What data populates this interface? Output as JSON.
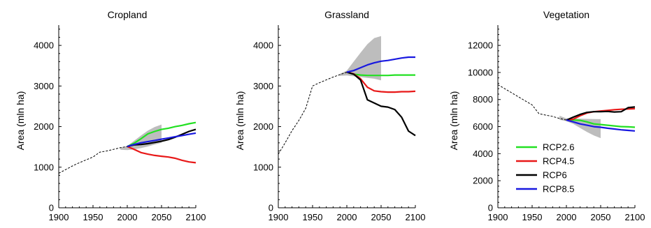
{
  "figure": {
    "x_ticks": [
      "1900",
      "1950",
      "2000",
      "2050",
      "2100"
    ],
    "ylabel": "Area (mln ha)"
  },
  "legend": [
    {
      "name": "RCP2.6",
      "color": "#22e022"
    },
    {
      "name": "RCP4.5",
      "color": "#e81818"
    },
    {
      "name": "RCP6",
      "color": "#000000"
    },
    {
      "name": "RCP8.5",
      "color": "#1818e0"
    }
  ],
  "chart_data": [
    {
      "type": "line",
      "title": "Cropland",
      "xlabel": "",
      "ylabel": "Area (mln ha)",
      "xlim": [
        1900,
        2100
      ],
      "ylim": [
        0,
        4500
      ],
      "yticks": [
        0,
        1000,
        2000,
        3000,
        4000
      ],
      "y_tick_labels": [
        "0",
        "1000",
        "2000",
        "3000",
        "4000"
      ],
      "historical": {
        "style": "dashed",
        "x": [
          1900,
          1910,
          1920,
          1930,
          1940,
          1950,
          1960,
          1970,
          1980,
          1990,
          2000
        ],
        "y": [
          850,
          940,
          1030,
          1110,
          1180,
          1250,
          1370,
          1400,
          1440,
          1480,
          1510
        ]
      },
      "band": {
        "x": [
          1990,
          2000,
          2010,
          2020,
          2030,
          2040,
          2050
        ],
        "low": [
          1430,
          1420,
          1440,
          1470,
          1510,
          1560,
          1600
        ],
        "high": [
          1480,
          1520,
          1650,
          1780,
          1900,
          1990,
          2050
        ]
      },
      "series": [
        {
          "name": "RCP2.6",
          "color": "#22e022",
          "x": [
            2000,
            2010,
            2020,
            2030,
            2040,
            2050,
            2060,
            2070,
            2080,
            2090,
            2100
          ],
          "y": [
            1510,
            1590,
            1700,
            1820,
            1880,
            1930,
            1960,
            2000,
            2030,
            2070,
            2100
          ]
        },
        {
          "name": "RCP4.5",
          "color": "#e81818",
          "x": [
            2000,
            2010,
            2020,
            2030,
            2040,
            2050,
            2060,
            2070,
            2080,
            2090,
            2100
          ],
          "y": [
            1510,
            1440,
            1360,
            1320,
            1290,
            1270,
            1250,
            1220,
            1170,
            1130,
            1110
          ]
        },
        {
          "name": "RCP6",
          "color": "#000000",
          "x": [
            2000,
            2010,
            2020,
            2030,
            2040,
            2050,
            2060,
            2070,
            2080,
            2090,
            2100
          ],
          "y": [
            1510,
            1550,
            1560,
            1580,
            1610,
            1640,
            1680,
            1740,
            1810,
            1880,
            1930
          ]
        },
        {
          "name": "RCP8.5",
          "color": "#1818e0",
          "x": [
            2000,
            2010,
            2020,
            2030,
            2040,
            2050,
            2060,
            2070,
            2080,
            2090,
            2100
          ],
          "y": [
            1510,
            1560,
            1600,
            1630,
            1660,
            1690,
            1720,
            1750,
            1780,
            1810,
            1840
          ]
        }
      ]
    },
    {
      "type": "line",
      "title": "Grassland",
      "xlabel": "",
      "ylabel": "Area (mln ha)",
      "xlim": [
        1900,
        2100
      ],
      "ylim": [
        0,
        4500
      ],
      "yticks": [
        0,
        1000,
        2000,
        3000,
        4000
      ],
      "y_tick_labels": [
        "0",
        "1000",
        "2000",
        "3000",
        "4000"
      ],
      "historical": {
        "style": "dashed",
        "x": [
          1900,
          1910,
          1920,
          1930,
          1940,
          1950,
          1960,
          1970,
          1980,
          1990,
          2000
        ],
        "y": [
          1320,
          1600,
          1900,
          2150,
          2450,
          3000,
          3080,
          3150,
          3220,
          3280,
          3340
        ]
      },
      "band": {
        "x": [
          1990,
          2000,
          2010,
          2020,
          2030,
          2040,
          2050
        ],
        "low": [
          3250,
          3260,
          3240,
          3220,
          3200,
          3180,
          3140
        ],
        "high": [
          3300,
          3380,
          3600,
          3820,
          4030,
          4180,
          4230
        ]
      },
      "series": [
        {
          "name": "RCP2.6",
          "color": "#22e022",
          "x": [
            2000,
            2010,
            2020,
            2030,
            2040,
            2050,
            2060,
            2070,
            2080,
            2090,
            2100
          ],
          "y": [
            3340,
            3290,
            3270,
            3260,
            3260,
            3260,
            3260,
            3270,
            3270,
            3270,
            3270
          ]
        },
        {
          "name": "RCP4.5",
          "color": "#e81818",
          "x": [
            2000,
            2010,
            2020,
            2030,
            2040,
            2050,
            2060,
            2070,
            2080,
            2090,
            2100
          ],
          "y": [
            3340,
            3300,
            3180,
            2970,
            2880,
            2860,
            2850,
            2850,
            2860,
            2860,
            2870
          ]
        },
        {
          "name": "RCP6",
          "color": "#000000",
          "x": [
            2000,
            2010,
            2020,
            2030,
            2040,
            2050,
            2060,
            2070,
            2080,
            2090,
            2100
          ],
          "y": [
            3340,
            3290,
            3150,
            2660,
            2580,
            2500,
            2480,
            2420,
            2230,
            1890,
            1780
          ]
        },
        {
          "name": "RCP8.5",
          "color": "#1818e0",
          "x": [
            2000,
            2010,
            2020,
            2030,
            2040,
            2050,
            2060,
            2070,
            2080,
            2090,
            2100
          ],
          "y": [
            3340,
            3380,
            3450,
            3520,
            3570,
            3610,
            3630,
            3660,
            3690,
            3710,
            3710
          ]
        }
      ]
    },
    {
      "type": "line",
      "title": "Vegetation",
      "xlabel": "",
      "ylabel": "Area (mln ha)",
      "xlim": [
        1900,
        2100
      ],
      "ylim": [
        0,
        13500
      ],
      "yticks": [
        0,
        2000,
        4000,
        6000,
        8000,
        10000,
        12000
      ],
      "y_tick_labels": [
        "0",
        "2000",
        "4000",
        "6000",
        "8000",
        "10000",
        "12000"
      ],
      "historical": {
        "style": "dashed",
        "x": [
          1900,
          1910,
          1920,
          1930,
          1940,
          1950,
          1960,
          1970,
          1980,
          1990,
          2000
        ],
        "y": [
          9100,
          8800,
          8500,
          8200,
          7900,
          7600,
          6950,
          6850,
          6750,
          6600,
          6480
        ]
      },
      "band": {
        "x": [
          1990,
          2000,
          2010,
          2020,
          2030,
          2040,
          2050
        ],
        "low": [
          6500,
          6400,
          6200,
          5900,
          5600,
          5350,
          5150
        ],
        "high": [
          6800,
          6600,
          6600,
          6580,
          6570,
          6560,
          6550
        ]
      },
      "series": [
        {
          "name": "RCP2.6",
          "color": "#22e022",
          "x": [
            2000,
            2010,
            2020,
            2030,
            2040,
            2050,
            2060,
            2070,
            2080,
            2090,
            2100
          ],
          "y": [
            6480,
            6480,
            6460,
            6350,
            6200,
            6150,
            6100,
            6050,
            6000,
            5980,
            5950
          ]
        },
        {
          "name": "RCP4.5",
          "color": "#e81818",
          "x": [
            2000,
            2010,
            2020,
            2030,
            2040,
            2050,
            2060,
            2070,
            2080,
            2090,
            2100
          ],
          "y": [
            6480,
            6550,
            6800,
            7000,
            7100,
            7150,
            7200,
            7250,
            7280,
            7300,
            7320
          ]
        },
        {
          "name": "RCP6",
          "color": "#000000",
          "x": [
            2000,
            2010,
            2020,
            2030,
            2040,
            2050,
            2060,
            2070,
            2080,
            2090,
            2100
          ],
          "y": [
            6480,
            6700,
            6900,
            7050,
            7100,
            7100,
            7120,
            7080,
            7100,
            7400,
            7450
          ]
        },
        {
          "name": "RCP8.5",
          "color": "#1818e0",
          "x": [
            2000,
            2010,
            2020,
            2030,
            2040,
            2050,
            2060,
            2070,
            2080,
            2090,
            2100
          ],
          "y": [
            6480,
            6350,
            6200,
            6100,
            6000,
            5950,
            5880,
            5820,
            5760,
            5720,
            5680
          ]
        }
      ]
    }
  ]
}
